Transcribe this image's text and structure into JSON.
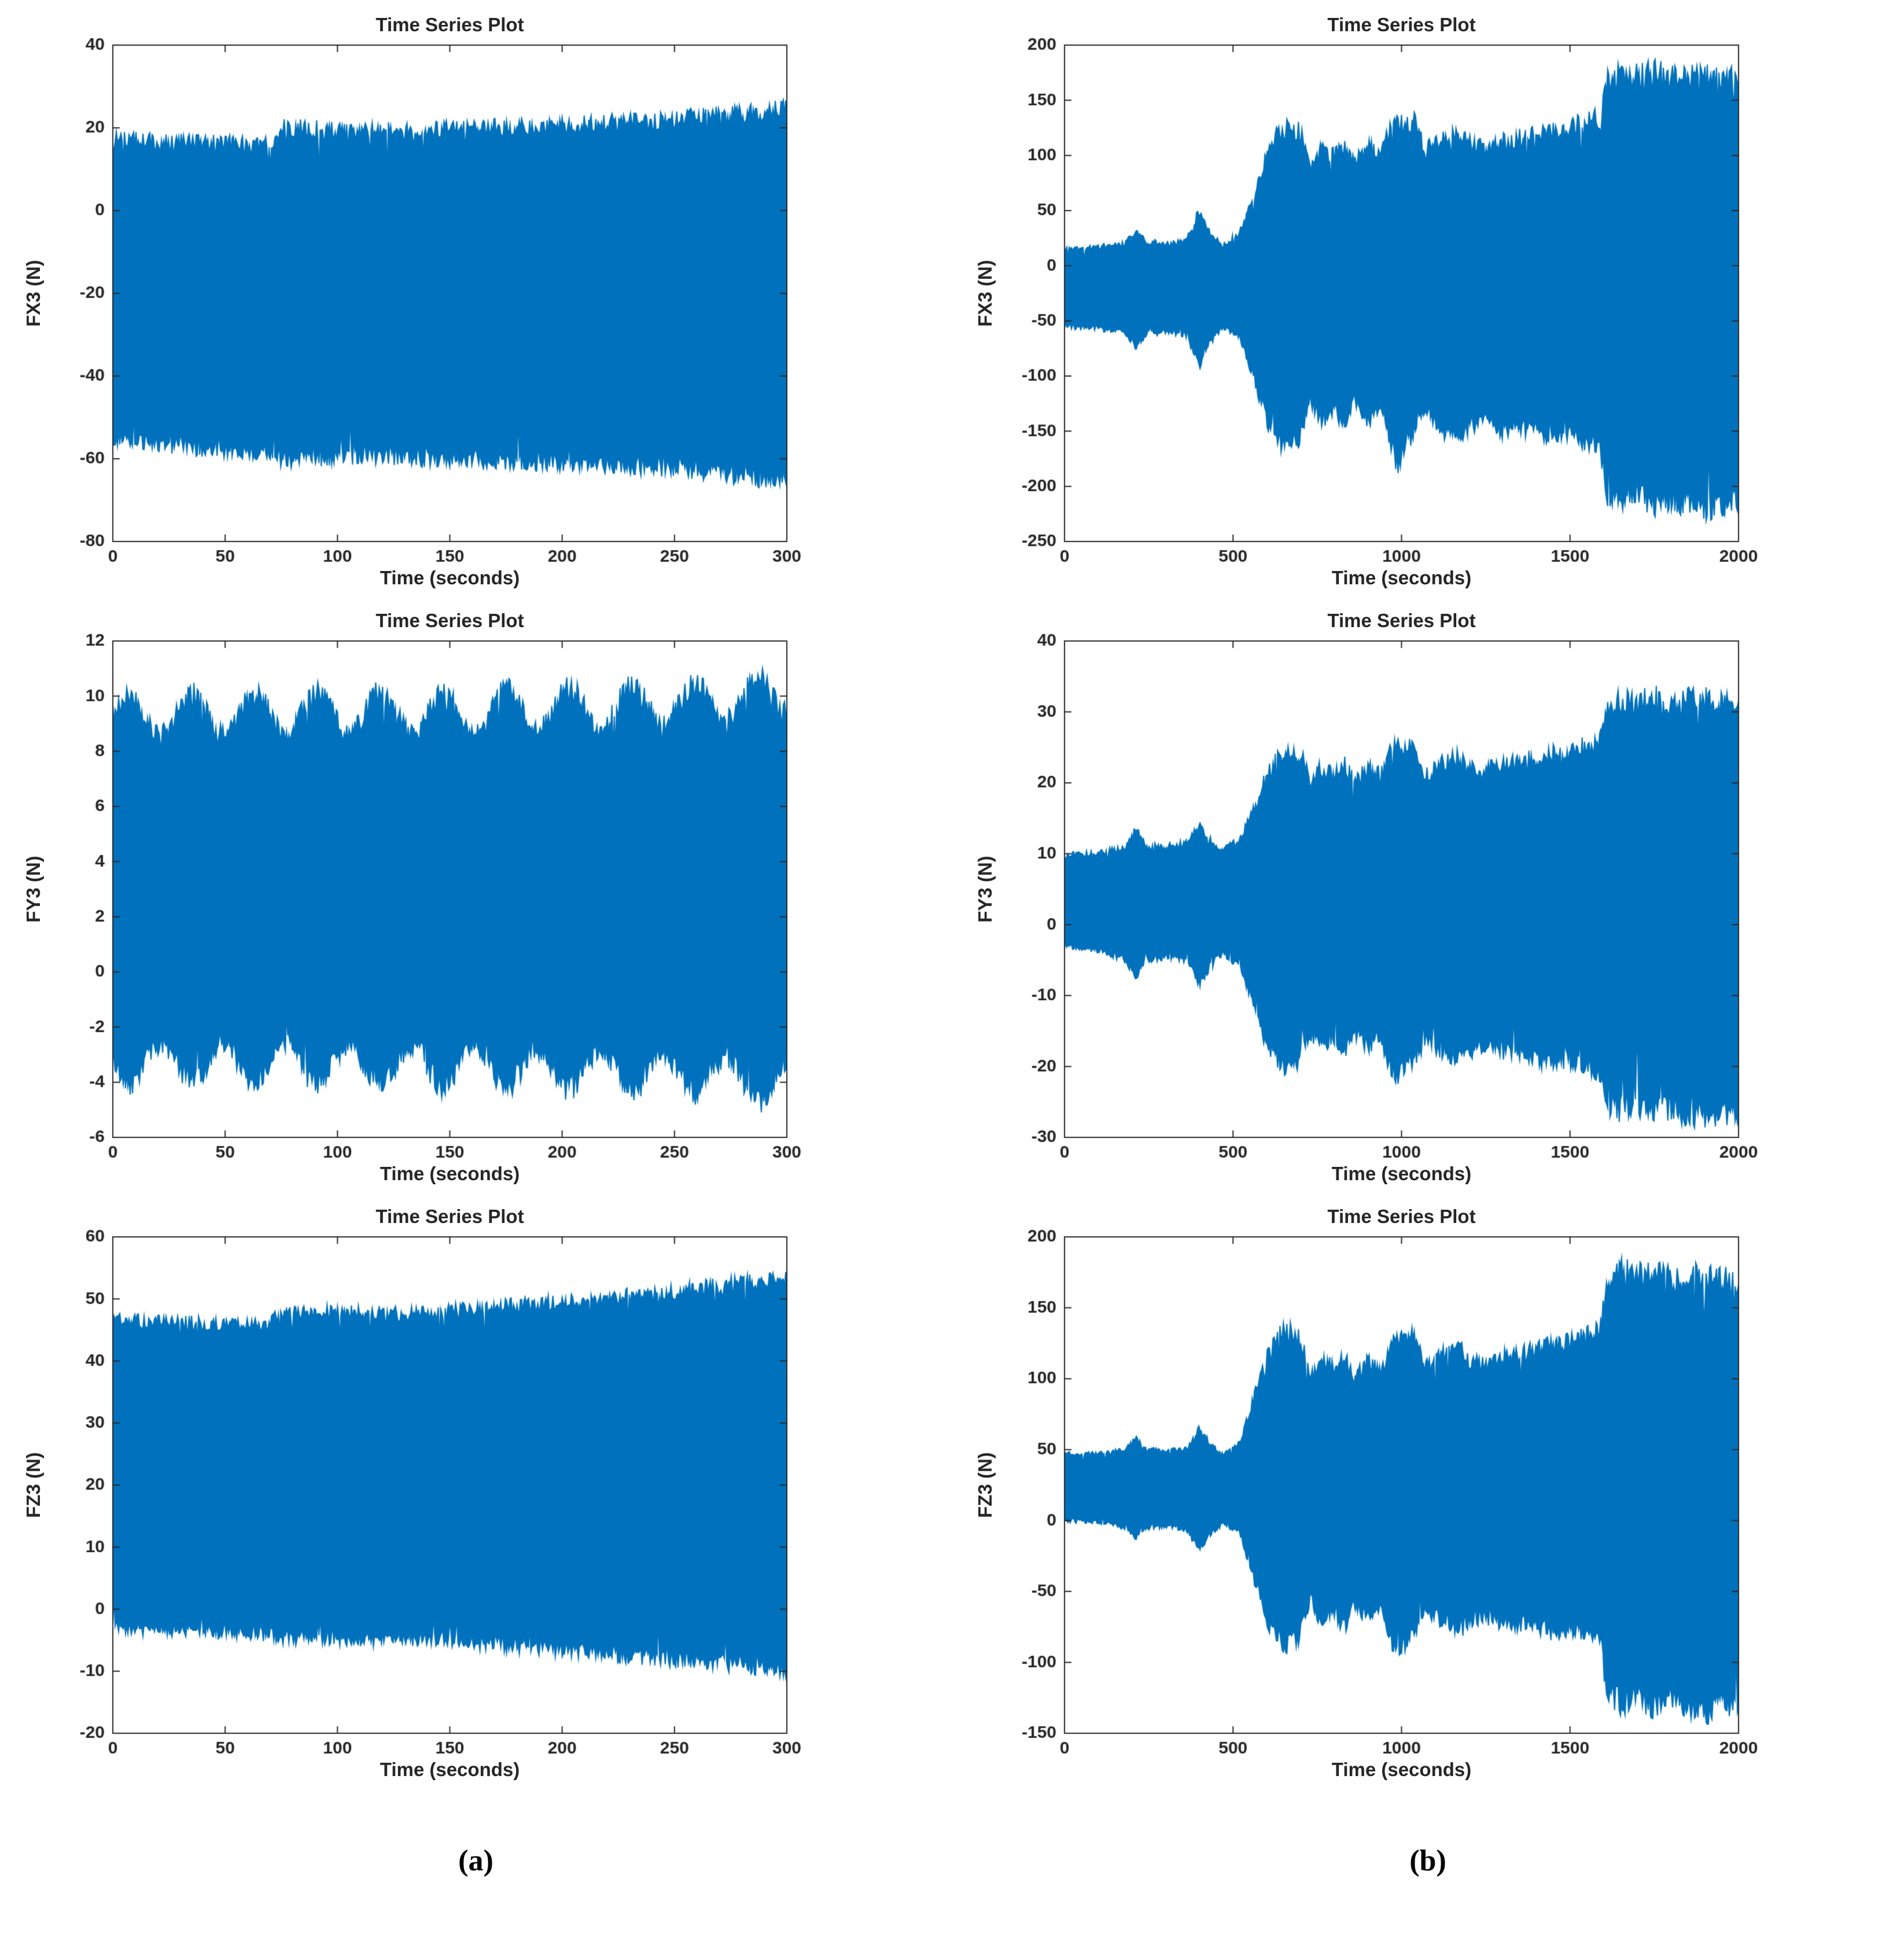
{
  "figure": {
    "captions": {
      "a": "(a)",
      "b": "(b)"
    }
  },
  "colors": {
    "series": "#0072BD",
    "axis": "#262626",
    "background": "#ffffff"
  },
  "chart_data": [
    {
      "id": "a-fx3",
      "type": "area",
      "title": "Time Series Plot",
      "xlabel": "Time (seconds)",
      "ylabel": "FX3 (N)",
      "xlim": [
        0,
        300
      ],
      "ylim": [
        -80,
        40
      ],
      "xticks": [
        0,
        50,
        100,
        150,
        200,
        250,
        300
      ],
      "yticks": [
        -80,
        -60,
        -40,
        -20,
        0,
        20,
        40
      ],
      "grid": false,
      "jitter": 0.06,
      "modulation": null,
      "envelope": {
        "x": [
          0,
          30,
          60,
          72,
          75,
          110,
          150,
          200,
          250,
          280,
          300
        ],
        "lo": [
          -55,
          -57,
          -58,
          -58,
          -60,
          -59,
          -60,
          -61,
          -62,
          -64,
          -65
        ],
        "hi": [
          17,
          16.5,
          16,
          16,
          20,
          19,
          19.5,
          20.5,
          22,
          23,
          25
        ]
      }
    },
    {
      "id": "a-fy3",
      "type": "area",
      "title": "Time Series Plot",
      "xlabel": "Time (seconds)",
      "ylabel": "FY3 (N)",
      "xlim": [
        0,
        300
      ],
      "ylim": [
        -6,
        12
      ],
      "xticks": [
        0,
        50,
        100,
        150,
        200,
        250,
        300
      ],
      "yticks": [
        -6,
        -4,
        -2,
        0,
        2,
        4,
        6,
        8,
        10,
        12
      ],
      "grid": false,
      "jitter": 0.07,
      "modulation": {
        "period": 28,
        "amplitude": 0.7
      },
      "envelope": {
        "x": [
          0,
          150,
          260,
          300
        ],
        "lo": [
          -3.3,
          -3.4,
          -3.7,
          -4.0
        ],
        "hi": [
          9.3,
          9.4,
          9.7,
          10.0
        ]
      }
    },
    {
      "id": "a-fz3",
      "type": "area",
      "title": "Time Series Plot",
      "xlabel": "Time (seconds)",
      "ylabel": "FZ3 (N)",
      "xlim": [
        0,
        300
      ],
      "ylim": [
        -20,
        60
      ],
      "xticks": [
        0,
        50,
        100,
        150,
        200,
        250,
        300
      ],
      "yticks": [
        -20,
        -10,
        0,
        10,
        20,
        30,
        40,
        50,
        60
      ],
      "grid": false,
      "jitter": 0.05,
      "modulation": null,
      "envelope": {
        "x": [
          0,
          40,
          70,
          74,
          120,
          150,
          200,
          250,
          280,
          300
        ],
        "lo": [
          -3,
          -3.5,
          -4,
          -4.5,
          -4.8,
          -5,
          -6.5,
          -8,
          -9,
          -10
        ],
        "hi": [
          46.5,
          46,
          45.8,
          48,
          47.5,
          48,
          49.5,
          51,
          52.5,
          53
        ]
      }
    },
    {
      "id": "b-fx3",
      "type": "area",
      "title": "Time Series Plot",
      "xlabel": "Time (seconds)",
      "ylabel": "FX3 (N)",
      "xlim": [
        0,
        2000
      ],
      "ylim": [
        -250,
        200
      ],
      "xticks": [
        0,
        500,
        1000,
        1500,
        2000
      ],
      "yticks": [
        -250,
        -200,
        -150,
        -100,
        -50,
        0,
        50,
        100,
        150,
        200
      ],
      "grid": false,
      "jitter": 0.07,
      "modulation": null,
      "envelope": {
        "x": [
          0,
          100,
          180,
          215,
          240,
          300,
          360,
          400,
          430,
          470,
          520,
          560,
          600,
          650,
          700,
          730,
          760,
          800,
          830,
          860,
          900,
          940,
          960,
          990,
          1010,
          1040,
          1070,
          1100,
          1130,
          1170,
          1200,
          1250,
          1300,
          1350,
          1400,
          1450,
          1500,
          1550,
          1590,
          1610,
          1650,
          1700,
          1750,
          1800,
          1850,
          1900,
          1950,
          2000
        ],
        "lo": [
          -55,
          -57,
          -60,
          -75,
          -62,
          -60,
          -62,
          -90,
          -70,
          -55,
          -65,
          -100,
          -140,
          -165,
          -155,
          -120,
          -140,
          -130,
          -145,
          -120,
          -140,
          -125,
          -150,
          -185,
          -160,
          -150,
          -130,
          -140,
          -150,
          -155,
          -145,
          -140,
          -150,
          -145,
          -150,
          -155,
          -150,
          -160,
          -165,
          -205,
          -210,
          -205,
          -215,
          -210,
          -215,
          -220,
          -215,
          -212
        ],
        "hi": [
          15,
          17,
          20,
          32,
          22,
          20,
          22,
          50,
          30,
          18,
          30,
          60,
          100,
          128,
          120,
          90,
          105,
          100,
          110,
          95,
          108,
          100,
          120,
          128,
          125,
          130,
          105,
          110,
          115,
          120,
          110,
          108,
          112,
          115,
          118,
          122,
          125,
          130,
          135,
          168,
          172,
          170,
          175,
          168,
          172,
          170,
          168,
          170
        ]
      }
    },
    {
      "id": "b-fy3",
      "type": "area",
      "title": "Time Series Plot",
      "xlabel": "Time (seconds)",
      "ylabel": "FY3 (N)",
      "xlim": [
        0,
        2000
      ],
      "ylim": [
        -30,
        40
      ],
      "xticks": [
        0,
        500,
        1000,
        1500,
        2000
      ],
      "yticks": [
        -30,
        -20,
        -10,
        0,
        10,
        20,
        30,
        40
      ],
      "grid": false,
      "jitter": 0.07,
      "modulation": null,
      "envelope": {
        "x": [
          0,
          100,
          180,
          215,
          240,
          300,
          360,
          400,
          430,
          470,
          520,
          560,
          600,
          650,
          700,
          730,
          760,
          800,
          830,
          860,
          900,
          940,
          960,
          990,
          1010,
          1040,
          1070,
          1100,
          1130,
          1170,
          1200,
          1250,
          1300,
          1350,
          1400,
          1450,
          1500,
          1550,
          1590,
          1610,
          1650,
          1700,
          1750,
          1800,
          1850,
          1900,
          1950,
          2000
        ],
        "lo": [
          -3,
          -3.5,
          -5,
          -7.5,
          -5,
          -4.5,
          -5,
          -8.5,
          -6,
          -4,
          -6,
          -11,
          -17,
          -20,
          -19,
          -15,
          -17,
          -16,
          -18,
          -15,
          -17,
          -16,
          -19,
          -22,
          -20,
          -19,
          -16,
          -17,
          -18,
          -19,
          -18,
          -17,
          -18,
          -18,
          -19,
          -19,
          -19,
          -20,
          -21,
          -25,
          -26,
          -25.5,
          -26.5,
          -26,
          -26.5,
          -27,
          -26.5,
          -26
        ],
        "hi": [
          10,
          10,
          11,
          13.5,
          11,
          11,
          11.5,
          14,
          12,
          10.5,
          12,
          16,
          21,
          24.5,
          24,
          20,
          22,
          21,
          22.5,
          20,
          22,
          21,
          23.5,
          25.5,
          25,
          25,
          21,
          22,
          23,
          23.5,
          22,
          22,
          22.5,
          23,
          23.5,
          24,
          24.5,
          25,
          26,
          31,
          31.5,
          31,
          32,
          31,
          31.5,
          31.5,
          31,
          31.5
        ]
      }
    },
    {
      "id": "b-fz3",
      "type": "area",
      "title": "Time Series Plot",
      "xlabel": "Time (seconds)",
      "ylabel": "FZ3 (N)",
      "xlim": [
        0,
        2000
      ],
      "ylim": [
        -150,
        200
      ],
      "xticks": [
        0,
        500,
        1000,
        1500,
        2000
      ],
      "yticks": [
        -150,
        -100,
        -50,
        0,
        50,
        100,
        150,
        200
      ],
      "grid": false,
      "jitter": 0.07,
      "modulation": null,
      "envelope": {
        "x": [
          0,
          100,
          180,
          215,
          240,
          300,
          360,
          400,
          430,
          470,
          520,
          560,
          600,
          650,
          700,
          730,
          760,
          800,
          830,
          860,
          900,
          940,
          960,
          990,
          1010,
          1040,
          1070,
          1100,
          1130,
          1170,
          1200,
          1250,
          1300,
          1350,
          1400,
          1450,
          1500,
          1550,
          1590,
          1610,
          1650,
          1700,
          1750,
          1800,
          1850,
          1900,
          1950,
          2000
        ],
        "lo": [
          0,
          -1,
          -5,
          -12,
          -5,
          -4,
          -6,
          -20,
          -10,
          -2,
          -8,
          -40,
          -70,
          -88,
          -80,
          -55,
          -70,
          -65,
          -75,
          -58,
          -70,
          -62,
          -80,
          -95,
          -85,
          -80,
          -60,
          -68,
          -72,
          -78,
          -70,
          -68,
          -72,
          -72,
          -75,
          -78,
          -76,
          -80,
          -85,
          -120,
          -128,
          -124,
          -130,
          -126,
          -130,
          -135,
          -130,
          -128
        ],
        "hi": [
          47,
          47,
          50,
          58,
          50,
          49,
          50,
          65,
          55,
          46,
          55,
          85,
          115,
          135,
          128,
          100,
          112,
          108,
          115,
          100,
          112,
          105,
          120,
          130,
          128,
          130,
          108,
          112,
          118,
          122,
          112,
          110,
          115,
          118,
          120,
          124,
          126,
          130,
          135,
          172,
          176,
          172,
          178,
          170,
          174,
          172,
          168,
          170
        ]
      }
    }
  ]
}
